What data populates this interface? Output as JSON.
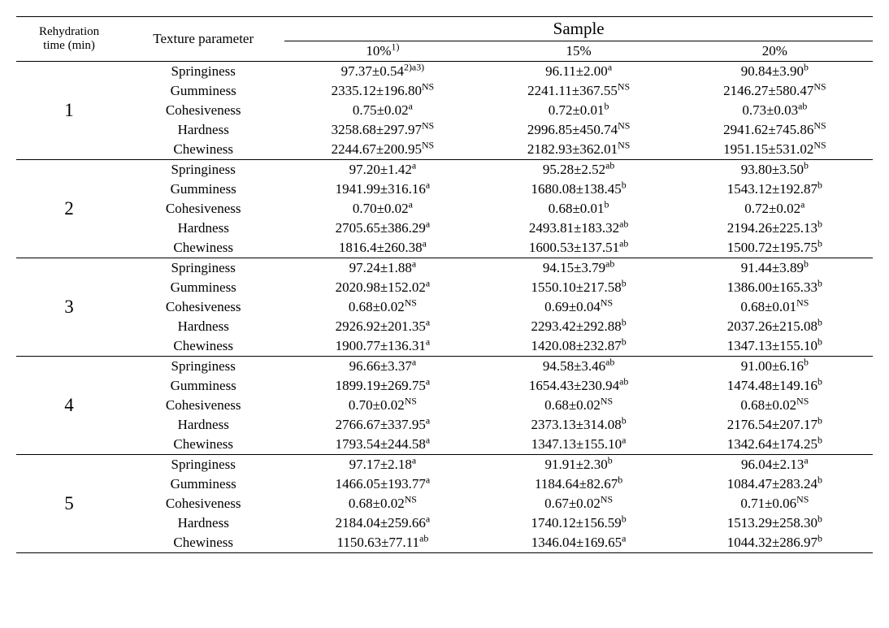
{
  "header": {
    "rehyd_line1": "Rehydration",
    "rehyd_line2": "time (min)",
    "param": "Texture parameter",
    "sample": "Sample",
    "pct10_base": "10%",
    "pct10_sup": "1)",
    "pct15": "15%",
    "pct20": "20%"
  },
  "params": [
    "Springiness",
    "Gumminess",
    "Cohesiveness",
    "Hardness",
    "Chewiness"
  ],
  "groups": [
    {
      "time": "1",
      "rows": [
        {
          "c10_base": "97.37±0.54",
          "c10_sup": "2)a3)",
          "c15_base": "96.11±2.00",
          "c15_sup": "a",
          "c20_base": "90.84±3.90",
          "c20_sup": "b"
        },
        {
          "c10_base": "2335.12±196.80",
          "c10_sup": "NS",
          "c15_base": "2241.11±367.55",
          "c15_sup": "NS",
          "c20_base": "2146.27±580.47",
          "c20_sup": "NS"
        },
        {
          "c10_base": "0.75±0.02",
          "c10_sup": "a",
          "c15_base": "0.72±0.01",
          "c15_sup": "b",
          "c20_base": "0.73±0.03",
          "c20_sup": "ab"
        },
        {
          "c10_base": "3258.68±297.97",
          "c10_sup": "NS",
          "c15_base": "2996.85±450.74",
          "c15_sup": "NS",
          "c20_base": "2941.62±745.86",
          "c20_sup": "NS"
        },
        {
          "c10_base": "2244.67±200.95",
          "c10_sup": "NS",
          "c15_base": "2182.93±362.01",
          "c15_sup": "NS",
          "c20_base": "1951.15±531.02",
          "c20_sup": "NS"
        }
      ]
    },
    {
      "time": "2",
      "rows": [
        {
          "c10_base": "97.20±1.42",
          "c10_sup": "a",
          "c15_base": "95.28±2.52",
          "c15_sup": "ab",
          "c20_base": "93.80±3.50",
          "c20_sup": "b"
        },
        {
          "c10_base": "1941.99±316.16",
          "c10_sup": "a",
          "c15_base": "1680.08±138.45",
          "c15_sup": "b",
          "c20_base": "1543.12±192.87",
          "c20_sup": "b"
        },
        {
          "c10_base": "0.70±0.02",
          "c10_sup": "a",
          "c15_base": "0.68±0.01",
          "c15_sup": "b",
          "c20_base": "0.72±0.02",
          "c20_sup": "a"
        },
        {
          "c10_base": "2705.65±386.29",
          "c10_sup": "a",
          "c15_base": "2493.81±183.32",
          "c15_sup": "ab",
          "c20_base": "2194.26±225.13",
          "c20_sup": "b"
        },
        {
          "c10_base": "1816.4±260.38",
          "c10_sup": "a",
          "c15_base": "1600.53±137.51",
          "c15_sup": "ab",
          "c20_base": "1500.72±195.75",
          "c20_sup": "b"
        }
      ]
    },
    {
      "time": "3",
      "rows": [
        {
          "c10_base": "97.24±1.88",
          "c10_sup": "a",
          "c15_base": "94.15±3.79",
          "c15_sup": "ab",
          "c20_base": "91.44±3.89",
          "c20_sup": "b"
        },
        {
          "c10_base": "2020.98±152.02",
          "c10_sup": "a",
          "c15_base": "1550.10±217.58",
          "c15_sup": "b",
          "c20_base": "1386.00±165.33",
          "c20_sup": "b"
        },
        {
          "c10_base": "0.68±0.02",
          "c10_sup": "NS",
          "c15_base": "0.69±0.04",
          "c15_sup": "NS",
          "c20_base": "0.68±0.01",
          "c20_sup": "NS"
        },
        {
          "c10_base": "2926.92±201.35",
          "c10_sup": "a",
          "c15_base": "2293.42±292.88",
          "c15_sup": "b",
          "c20_base": "2037.26±215.08",
          "c20_sup": "b"
        },
        {
          "c10_base": "1900.77±136.31",
          "c10_sup": "a",
          "c15_base": "1420.08±232.87",
          "c15_sup": "b",
          "c20_base": "1347.13±155.10",
          "c20_sup": "b"
        }
      ]
    },
    {
      "time": "4",
      "rows": [
        {
          "c10_base": "96.66±3.37",
          "c10_sup": "a",
          "c15_base": "94.58±3.46",
          "c15_sup": "ab",
          "c20_base": "91.00±6.16",
          "c20_sup": "b"
        },
        {
          "c10_base": "1899.19±269.75",
          "c10_sup": "a",
          "c15_base": "1654.43±230.94",
          "c15_sup": "ab",
          "c20_base": "1474.48±149.16",
          "c20_sup": "b"
        },
        {
          "c10_base": "0.70±0.02",
          "c10_sup": "NS",
          "c15_base": "0.68±0.02",
          "c15_sup": "NS",
          "c20_base": "0.68±0.02",
          "c20_sup": "NS"
        },
        {
          "c10_base": "2766.67±337.95",
          "c10_sup": "a",
          "c15_base": "2373.13±314.08",
          "c15_sup": "b",
          "c20_base": "2176.54±207.17",
          "c20_sup": "b"
        },
        {
          "c10_base": "1793.54±244.58",
          "c10_sup": "a",
          "c15_base": "1347.13±155.10",
          "c15_sup": "a",
          "c20_base": "1342.64±174.25",
          "c20_sup": "b"
        }
      ]
    },
    {
      "time": "5",
      "rows": [
        {
          "c10_base": "97.17±2.18",
          "c10_sup": "a",
          "c15_base": "91.91±2.30",
          "c15_sup": "b",
          "c20_base": "96.04±2.13",
          "c20_sup": "a"
        },
        {
          "c10_base": "1466.05±193.77",
          "c10_sup": "a",
          "c15_base": "1184.64±82.67",
          "c15_sup": "b",
          "c20_base": "1084.47±283.24",
          "c20_sup": "b"
        },
        {
          "c10_base": "0.68±0.02",
          "c10_sup": "NS",
          "c15_base": "0.67±0.02",
          "c15_sup": "NS",
          "c20_base": "0.71±0.06",
          "c20_sup": "NS"
        },
        {
          "c10_base": "2184.04±259.66",
          "c10_sup": "a",
          "c15_base": "1740.12±156.59",
          "c15_sup": "b",
          "c20_base": "1513.29±258.30",
          "c20_sup": "b"
        },
        {
          "c10_base": "1150.63±77.11",
          "c10_sup": "ab",
          "c15_base": "1346.04±169.65",
          "c15_sup": "a",
          "c20_base": "1044.32±286.97",
          "c20_sup": "b"
        }
      ]
    }
  ]
}
